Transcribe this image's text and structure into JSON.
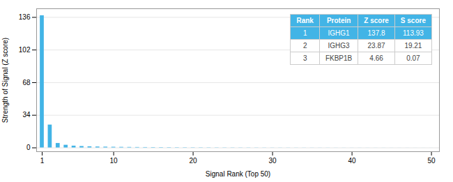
{
  "chart_data": {
    "type": "bar",
    "xlabel": "Signal Rank (Top 50)",
    "ylabel": "Strength of Signal (Z score)",
    "x": [
      1,
      2,
      3,
      4,
      5,
      6,
      7,
      8,
      9,
      10,
      11,
      12,
      13,
      14,
      15,
      16,
      17,
      18,
      19,
      20,
      21,
      22,
      23,
      24,
      25,
      26,
      27,
      28,
      29,
      30,
      31,
      32,
      33,
      34,
      35,
      36,
      37,
      38,
      39,
      40,
      41,
      42,
      43,
      44,
      45,
      46,
      47,
      48,
      49,
      50
    ],
    "values": [
      137.8,
      23.87,
      4.66,
      2.8,
      1.9,
      1.5,
      1.2,
      1.0,
      0.85,
      0.72,
      0.62,
      0.54,
      0.47,
      0.41,
      0.37,
      0.33,
      0.3,
      0.27,
      0.25,
      0.23,
      0.21,
      0.19,
      0.18,
      0.16,
      0.15,
      0.14,
      0.13,
      0.12,
      0.11,
      0.1,
      0.095,
      0.09,
      0.085,
      0.08,
      0.075,
      0.07,
      0.065,
      0.06,
      0.055,
      0.05,
      0.048,
      0.045,
      0.042,
      0.04,
      0.037,
      0.035,
      0.032,
      0.03,
      0.027,
      0.025
    ],
    "color": "#42b4e6",
    "xlim": [
      0.3,
      51
    ],
    "xticks": [
      1,
      10,
      20,
      30,
      40,
      50
    ],
    "ylim": [
      -4,
      145
    ],
    "yticks": [
      0,
      34,
      68,
      102,
      136
    ],
    "grid": true,
    "table": {
      "headers": [
        "Rank",
        "Protein",
        "Z score",
        "S score"
      ],
      "rows": [
        [
          "1",
          "IGHG1",
          "137.8",
          "113.93"
        ],
        [
          "2",
          "IGHG3",
          "23.87",
          "19.21"
        ],
        [
          "3",
          "FKBP1B",
          "4.66",
          "0.07"
        ]
      ]
    }
  }
}
